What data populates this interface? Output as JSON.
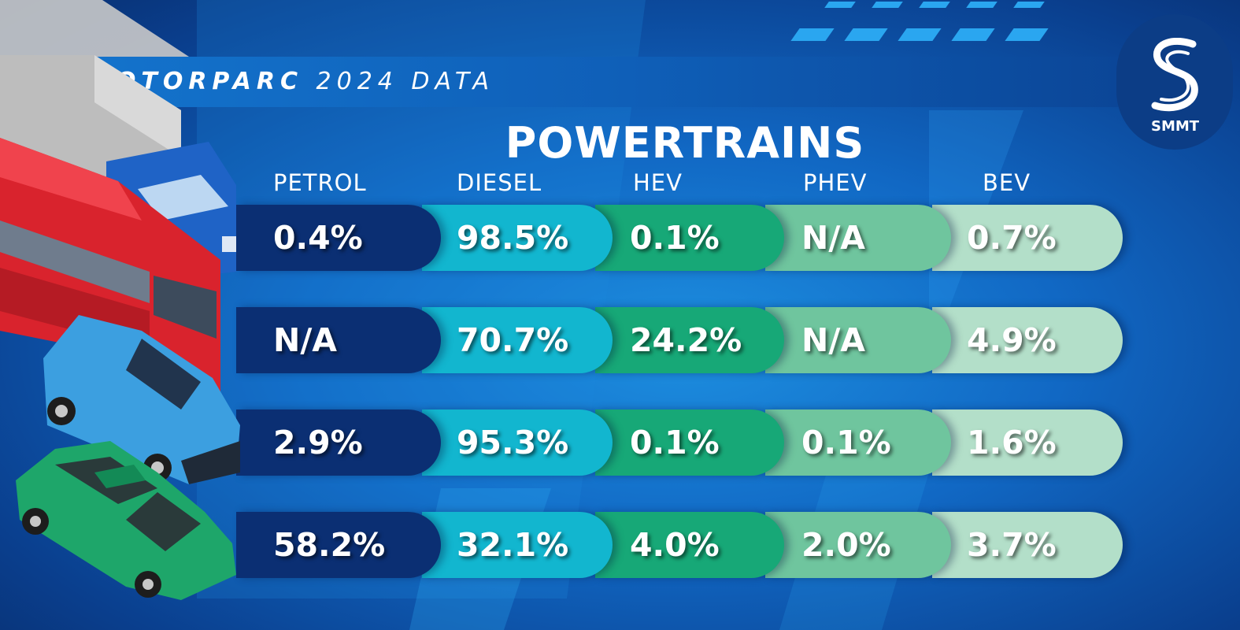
{
  "header": {
    "title_bold": "MOTORPARC",
    "title_light": "2024 DATA"
  },
  "logo": {
    "text": "SMMT",
    "icon": "smmt-s-icon"
  },
  "chart_data": {
    "type": "table",
    "title": "POWERTRAINS",
    "columns": [
      "PETROL",
      "DIESEL",
      "HEV",
      "PHEV",
      "BEV"
    ],
    "rows": [
      {
        "vehicle_icon": "truck-icon",
        "values": [
          "0.4%",
          "98.5%",
          "0.1%",
          "N/A",
          "0.7%"
        ]
      },
      {
        "vehicle_icon": "bus-icon",
        "values": [
          "N/A",
          "70.7%",
          "24.2%",
          "N/A",
          "4.9%"
        ]
      },
      {
        "vehicle_icon": "van-icon",
        "values": [
          "2.9%",
          "95.3%",
          "0.1%",
          "0.1%",
          "1.6%"
        ]
      },
      {
        "vehicle_icon": "car-icon",
        "values": [
          "58.2%",
          "32.1%",
          "4.0%",
          "2.0%",
          "3.7%"
        ]
      }
    ],
    "colors": [
      "#0b2f73",
      "#12b6cf",
      "#17a877",
      "#6fc59e",
      "#b3dfc9"
    ]
  }
}
